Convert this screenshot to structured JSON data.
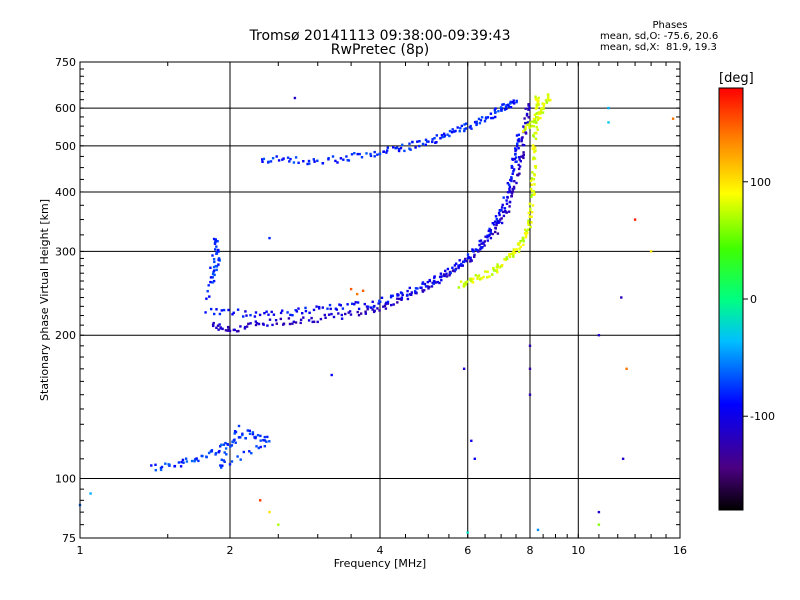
{
  "chart_data": {
    "type": "scatter",
    "title": "Tromsø 20141113 09:38:00-09:39:43",
    "subtitle": "RwPretec (8p)",
    "xlabel": "Frequency [MHz]",
    "ylabel": "Stationary phase Virtual Height [km]",
    "x_scale": "log",
    "y_scale": "log",
    "xlim": [
      1,
      16
    ],
    "ylim": [
      75,
      750
    ],
    "x_ticks": [
      "1",
      "2",
      "4",
      "6",
      "8",
      "10",
      "16"
    ],
    "y_ticks": [
      "75",
      "100",
      "200",
      "300",
      "400",
      "500",
      "600",
      "750"
    ],
    "grid": true,
    "stats_header": "Phases",
    "stats_line1": "mean, sd,O: -75.6, 20.6",
    "stats_line2": "mean, sd,X:  81.9, 19.3",
    "colorbar": {
      "label": "[deg]",
      "range": [
        -180,
        180
      ],
      "tick_labels": [
        "100",
        "0",
        "-100"
      ],
      "tick_values": [
        100,
        0,
        -100
      ]
    },
    "traces": [
      {
        "points": [
          [
            1.85,
            210
          ],
          [
            2.0,
            205
          ],
          [
            2.3,
            212
          ],
          [
            2.7,
            215
          ],
          [
            3.2,
            218
          ],
          [
            3.8,
            225
          ],
          [
            4.3,
            235
          ],
          [
            4.8,
            248
          ],
          [
            5.3,
            262
          ],
          [
            5.8,
            280
          ],
          [
            6.3,
            300
          ],
          [
            6.8,
            330
          ],
          [
            7.2,
            370
          ],
          [
            7.5,
            420
          ],
          [
            7.7,
            480
          ],
          [
            7.85,
            560
          ],
          [
            7.95,
            620
          ]
        ],
        "phase": -115
      },
      {
        "points": [
          [
            1.8,
            225
          ],
          [
            2.2,
            222
          ],
          [
            2.7,
            224
          ],
          [
            3.2,
            228
          ],
          [
            3.8,
            232
          ],
          [
            4.3,
            240
          ],
          [
            4.8,
            252
          ],
          [
            5.3,
            265
          ],
          [
            5.8,
            282
          ],
          [
            6.3,
            305
          ],
          [
            6.8,
            340
          ],
          [
            7.1,
            380
          ],
          [
            7.35,
            430
          ],
          [
            7.5,
            480
          ],
          [
            7.6,
            530
          ]
        ],
        "phase": -90
      },
      {
        "points": [
          [
            5.8,
            255
          ],
          [
            6.2,
            262
          ],
          [
            6.7,
            272
          ],
          [
            7.1,
            285
          ],
          [
            7.5,
            300
          ],
          [
            7.8,
            320
          ],
          [
            8.0,
            350
          ],
          [
            8.1,
            400
          ],
          [
            8.15,
            460
          ],
          [
            8.2,
            530
          ],
          [
            8.25,
            600
          ],
          [
            8.3,
            640
          ]
        ],
        "phase": 80
      },
      {
        "points": [
          [
            2.3,
            470
          ],
          [
            2.7,
            465
          ],
          [
            3.2,
            468
          ],
          [
            3.8,
            478
          ],
          [
            4.3,
            490
          ],
          [
            4.8,
            505
          ],
          [
            5.3,
            520
          ],
          [
            5.8,
            540
          ],
          [
            6.3,
            560
          ],
          [
            6.8,
            585
          ],
          [
            7.2,
            605
          ],
          [
            7.5,
            620
          ]
        ],
        "phase": -80
      },
      {
        "points": [
          [
            7.8,
            540
          ],
          [
            8.2,
            560
          ],
          [
            8.5,
            600
          ],
          [
            8.8,
            640
          ]
        ],
        "phase": 80
      },
      {
        "points": [
          [
            1.4,
            105
          ],
          [
            1.6,
            108
          ],
          [
            1.8,
            112
          ],
          [
            2.0,
            118
          ],
          [
            2.2,
            125
          ],
          [
            2.4,
            120
          ],
          [
            1.9,
            105
          ],
          [
            2.1,
            130
          ]
        ],
        "phase": -75
      },
      {
        "points": [
          [
            1.85,
            260
          ],
          [
            1.9,
            290
          ],
          [
            1.87,
            320
          ],
          [
            1.8,
            230
          ]
        ],
        "phase": -80
      }
    ],
    "points": [
      {
        "x": 3.7,
        "y": 248,
        "phase": 150
      },
      {
        "x": 3.5,
        "y": 250,
        "phase": 150
      },
      {
        "x": 3.6,
        "y": 244,
        "phase": 140
      },
      {
        "x": 2.7,
        "y": 630,
        "phase": -115
      },
      {
        "x": 2.4,
        "y": 320,
        "phase": -80
      },
      {
        "x": 3.2,
        "y": 165,
        "phase": -90
      },
      {
        "x": 5.9,
        "y": 170,
        "phase": -110
      },
      {
        "x": 6.1,
        "y": 120,
        "phase": -100
      },
      {
        "x": 6.2,
        "y": 110,
        "phase": -95
      },
      {
        "x": 8.0,
        "y": 190,
        "phase": -120
      },
      {
        "x": 8.0,
        "y": 170,
        "phase": -130
      },
      {
        "x": 8.0,
        "y": 150,
        "phase": -120
      },
      {
        "x": 11.0,
        "y": 85,
        "phase": -110
      },
      {
        "x": 11.0,
        "y": 200,
        "phase": -115
      },
      {
        "x": 11.5,
        "y": 560,
        "phase": -30
      },
      {
        "x": 11.5,
        "y": 600,
        "phase": -40
      },
      {
        "x": 12.2,
        "y": 240,
        "phase": -120
      },
      {
        "x": 12.3,
        "y": 110,
        "phase": -115
      },
      {
        "x": 12.5,
        "y": 170,
        "phase": 140
      },
      {
        "x": 13.0,
        "y": 350,
        "phase": 170
      },
      {
        "x": 14.0,
        "y": 300,
        "phase": 100
      },
      {
        "x": 15.5,
        "y": 570,
        "phase": 140
      },
      {
        "x": 2.4,
        "y": 85,
        "phase": 100
      },
      {
        "x": 2.5,
        "y": 80,
        "phase": 70
      },
      {
        "x": 2.3,
        "y": 90,
        "phase": 160
      },
      {
        "x": 1.05,
        "y": 93,
        "phase": -40
      },
      {
        "x": 1.0,
        "y": 88,
        "phase": -60
      },
      {
        "x": 6.0,
        "y": 77,
        "phase": -20
      },
      {
        "x": 8.3,
        "y": 78,
        "phase": -50
      },
      {
        "x": 11.0,
        "y": 80,
        "phase": 60
      }
    ]
  }
}
